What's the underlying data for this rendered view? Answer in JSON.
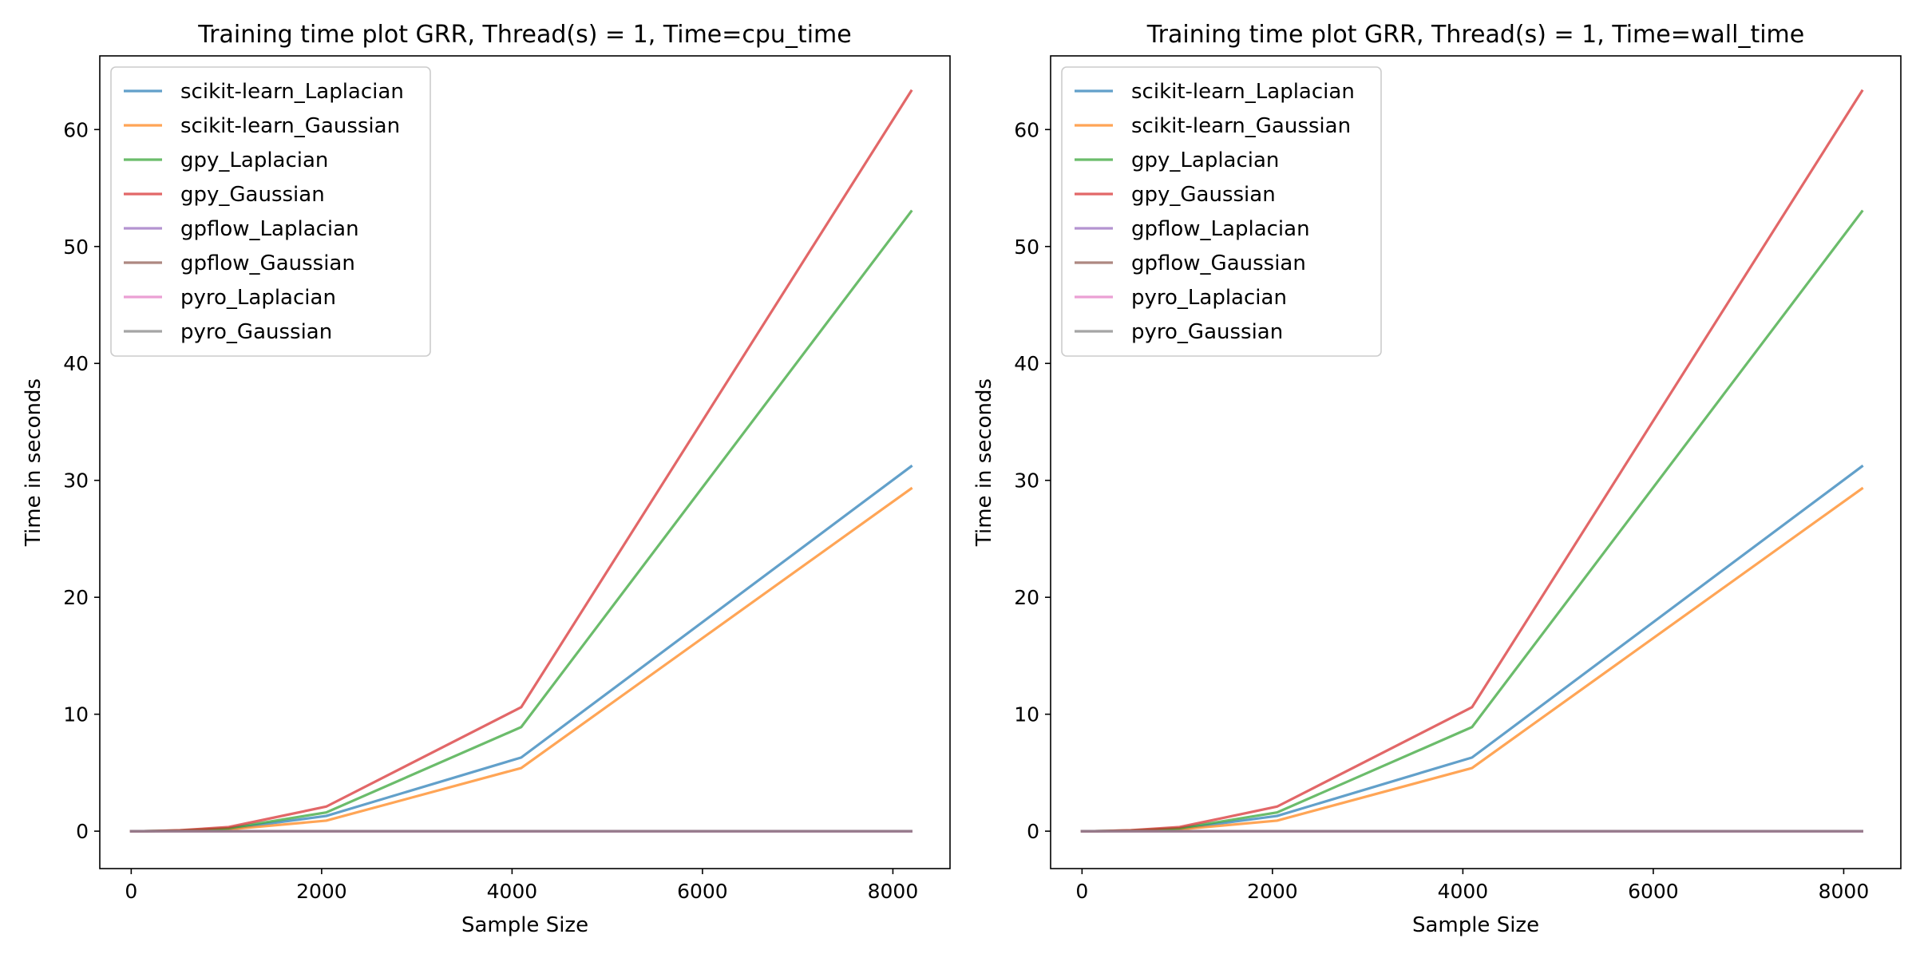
{
  "chart_data": [
    {
      "type": "line",
      "title": "Training time plot GRR, Thread(s) = 1, Time=cpu_time",
      "xlabel": "Sample Size",
      "ylabel": "Time in seconds",
      "xlim": [
        -330,
        8600
      ],
      "ylim": [
        -3.2,
        66.3
      ],
      "xticks": [
        0,
        2000,
        4000,
        6000,
        8000
      ],
      "yticks": [
        0,
        10,
        20,
        30,
        40,
        50,
        60
      ],
      "grid": false,
      "legend_position": "upper-left",
      "x": [
        1,
        2,
        4,
        8,
        16,
        32,
        64,
        128,
        256,
        512,
        1024,
        2048,
        4096,
        8192
      ],
      "series": [
        {
          "name": "scikit-learn_Laplacian",
          "color": "#1f77b4",
          "values": [
            0,
            0,
            0,
            0,
            0,
            0,
            0,
            0,
            0.01,
            0.04,
            0.2,
            1.3,
            6.3,
            31.2
          ]
        },
        {
          "name": "scikit-learn_Gaussian",
          "color": "#ff7f0e",
          "values": [
            0,
            0,
            0,
            0,
            0,
            0,
            0,
            0,
            0.01,
            0.03,
            0.15,
            0.9,
            5.4,
            29.3
          ]
        },
        {
          "name": "gpy_Laplacian",
          "color": "#2ca02c",
          "values": [
            0,
            0,
            0,
            0,
            0,
            0,
            0,
            0,
            0.02,
            0.06,
            0.25,
            1.6,
            8.9,
            53.0
          ]
        },
        {
          "name": "gpy_Gaussian",
          "color": "#d62728",
          "values": [
            0,
            0,
            0,
            0,
            0,
            0,
            0,
            0,
            0.02,
            0.08,
            0.35,
            2.1,
            10.6,
            63.3
          ]
        },
        {
          "name": "gpflow_Laplacian",
          "color": "#9467bd",
          "values": [
            0,
            0,
            0,
            0,
            0,
            0,
            0,
            0,
            0,
            0,
            0,
            0,
            0,
            0
          ]
        },
        {
          "name": "gpflow_Gaussian",
          "color": "#8c564b",
          "values": [
            0,
            0,
            0,
            0,
            0,
            0,
            0,
            0,
            0,
            0,
            0,
            0,
            0,
            0
          ]
        },
        {
          "name": "pyro_Laplacian",
          "color": "#e377c2",
          "values": [
            0,
            0,
            0,
            0,
            0,
            0,
            0,
            0,
            0,
            0,
            0,
            0,
            0,
            0
          ]
        },
        {
          "name": "pyro_Gaussian",
          "color": "#7f7f7f",
          "values": [
            0,
            0,
            0,
            0,
            0,
            0,
            0,
            0,
            0,
            0,
            0,
            0,
            0,
            0
          ]
        }
      ]
    },
    {
      "type": "line",
      "title": "Training time plot GRR, Thread(s) = 1, Time=wall_time",
      "xlabel": "Sample Size",
      "ylabel": "Time in seconds",
      "xlim": [
        -330,
        8600
      ],
      "ylim": [
        -3.2,
        66.3
      ],
      "xticks": [
        0,
        2000,
        4000,
        6000,
        8000
      ],
      "yticks": [
        0,
        10,
        20,
        30,
        40,
        50,
        60
      ],
      "grid": false,
      "legend_position": "upper-left",
      "x": [
        1,
        2,
        4,
        8,
        16,
        32,
        64,
        128,
        256,
        512,
        1024,
        2048,
        4096,
        8192
      ],
      "series": [
        {
          "name": "scikit-learn_Laplacian",
          "color": "#1f77b4",
          "values": [
            0,
            0,
            0,
            0,
            0,
            0,
            0,
            0,
            0.01,
            0.04,
            0.2,
            1.3,
            6.3,
            31.2
          ]
        },
        {
          "name": "scikit-learn_Gaussian",
          "color": "#ff7f0e",
          "values": [
            0,
            0,
            0,
            0,
            0,
            0,
            0,
            0,
            0.01,
            0.03,
            0.15,
            0.9,
            5.4,
            29.3
          ]
        },
        {
          "name": "gpy_Laplacian",
          "color": "#2ca02c",
          "values": [
            0,
            0,
            0,
            0,
            0,
            0,
            0,
            0,
            0.02,
            0.06,
            0.25,
            1.6,
            8.9,
            53.0
          ]
        },
        {
          "name": "gpy_Gaussian",
          "color": "#d62728",
          "values": [
            0,
            0,
            0,
            0,
            0,
            0,
            0,
            0,
            0.02,
            0.08,
            0.35,
            2.1,
            10.6,
            63.3
          ]
        },
        {
          "name": "gpflow_Laplacian",
          "color": "#9467bd",
          "values": [
            0,
            0,
            0,
            0,
            0,
            0,
            0,
            0,
            0,
            0,
            0,
            0,
            0,
            0
          ]
        },
        {
          "name": "gpflow_Gaussian",
          "color": "#8c564b",
          "values": [
            0,
            0,
            0,
            0,
            0,
            0,
            0,
            0,
            0,
            0,
            0,
            0,
            0,
            0
          ]
        },
        {
          "name": "pyro_Laplacian",
          "color": "#e377c2",
          "values": [
            0,
            0,
            0,
            0,
            0,
            0,
            0,
            0,
            0,
            0,
            0,
            0,
            0,
            0
          ]
        },
        {
          "name": "pyro_Gaussian",
          "color": "#7f7f7f",
          "values": [
            0,
            0,
            0,
            0,
            0,
            0,
            0,
            0,
            0,
            0,
            0,
            0,
            0,
            0
          ]
        }
      ]
    }
  ]
}
